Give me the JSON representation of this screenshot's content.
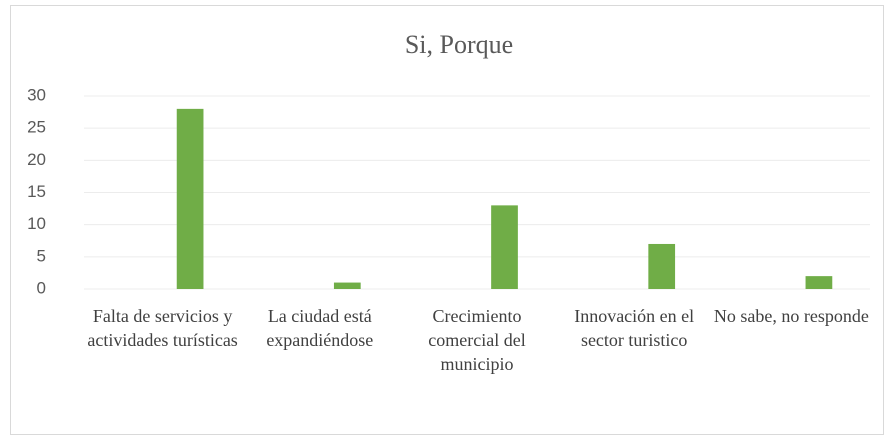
{
  "chart_data": {
    "type": "bar",
    "title": "Si, Porque",
    "categories": [
      "Falta de servicios y actividades turísticas",
      "La ciudad está expandiéndose",
      "Crecimiento comercial del municipio",
      "Innovación en el sector turistico",
      "No sabe, no responde"
    ],
    "values": [
      28,
      1,
      13,
      7,
      2
    ],
    "color": "#70ad47",
    "ylim": [
      0,
      30
    ],
    "yticks": [
      0,
      5,
      10,
      15,
      20,
      25,
      30
    ],
    "grid": true
  }
}
